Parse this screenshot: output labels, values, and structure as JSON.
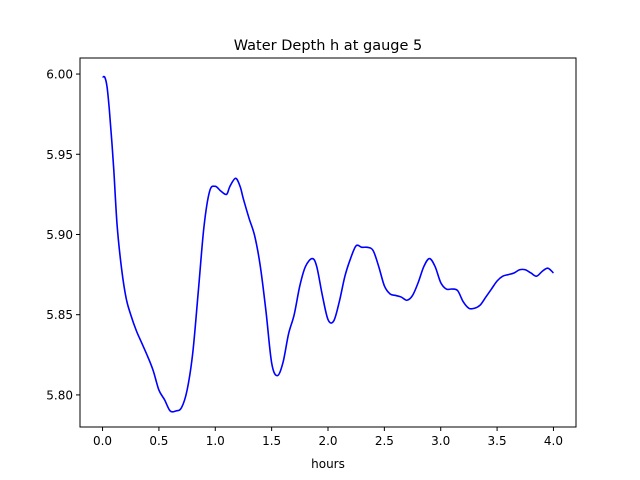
{
  "chart_data": {
    "type": "line",
    "title": "Water Depth h at gauge 5",
    "xlabel": "hours",
    "ylabel": "",
    "xlim": [
      -0.2,
      4.2
    ],
    "ylim": [
      5.78,
      6.01
    ],
    "xticks": [
      0.0,
      0.5,
      1.0,
      1.5,
      2.0,
      2.5,
      3.0,
      3.5,
      4.0
    ],
    "xtick_labels": [
      "0.0",
      "0.5",
      "1.0",
      "1.5",
      "2.0",
      "2.5",
      "3.0",
      "3.5",
      "4.0"
    ],
    "yticks": [
      5.8,
      5.85,
      5.9,
      5.95,
      6.0
    ],
    "ytick_labels": [
      "5.80",
      "5.85",
      "5.90",
      "5.95",
      "6.00"
    ],
    "grid": false,
    "color": "#0000ff",
    "series": [
      {
        "x": [
          0.0,
          0.02,
          0.04,
          0.06,
          0.08,
          0.1,
          0.13,
          0.17,
          0.21,
          0.25,
          0.3,
          0.35,
          0.4,
          0.45,
          0.5,
          0.55,
          0.6,
          0.65,
          0.7,
          0.75,
          0.8,
          0.85,
          0.9,
          0.95,
          1.0,
          1.05,
          1.1,
          1.13,
          1.18,
          1.22,
          1.25,
          1.3,
          1.35,
          1.4,
          1.45,
          1.5,
          1.55,
          1.6,
          1.65,
          1.7,
          1.75,
          1.8,
          1.86,
          1.9,
          1.95,
          2.0,
          2.05,
          2.1,
          2.15,
          2.2,
          2.25,
          2.3,
          2.35,
          2.4,
          2.45,
          2.5,
          2.55,
          2.6,
          2.65,
          2.7,
          2.75,
          2.8,
          2.85,
          2.9,
          2.95,
          3.0,
          3.05,
          3.1,
          3.15,
          3.2,
          3.25,
          3.3,
          3.35,
          3.4,
          3.45,
          3.5,
          3.55,
          3.6,
          3.65,
          3.7,
          3.75,
          3.8,
          3.85,
          3.9,
          3.95,
          4.0
        ],
        "y": [
          5.998,
          5.998,
          5.992,
          5.978,
          5.96,
          5.94,
          5.905,
          5.878,
          5.86,
          5.85,
          5.84,
          5.832,
          5.824,
          5.815,
          5.803,
          5.797,
          5.79,
          5.79,
          5.792,
          5.803,
          5.826,
          5.865,
          5.905,
          5.927,
          5.93,
          5.927,
          5.925,
          5.93,
          5.935,
          5.93,
          5.922,
          5.91,
          5.899,
          5.88,
          5.852,
          5.82,
          5.812,
          5.82,
          5.838,
          5.85,
          5.868,
          5.88,
          5.885,
          5.88,
          5.862,
          5.847,
          5.846,
          5.858,
          5.874,
          5.885,
          5.893,
          5.892,
          5.892,
          5.89,
          5.88,
          5.868,
          5.863,
          5.862,
          5.861,
          5.859,
          5.862,
          5.87,
          5.88,
          5.885,
          5.88,
          5.87,
          5.866,
          5.866,
          5.865,
          5.858,
          5.854,
          5.854,
          5.856,
          5.861,
          5.866,
          5.871,
          5.874,
          5.875,
          5.876,
          5.878,
          5.878,
          5.876,
          5.874,
          5.877,
          5.879,
          5.876
        ]
      }
    ]
  }
}
